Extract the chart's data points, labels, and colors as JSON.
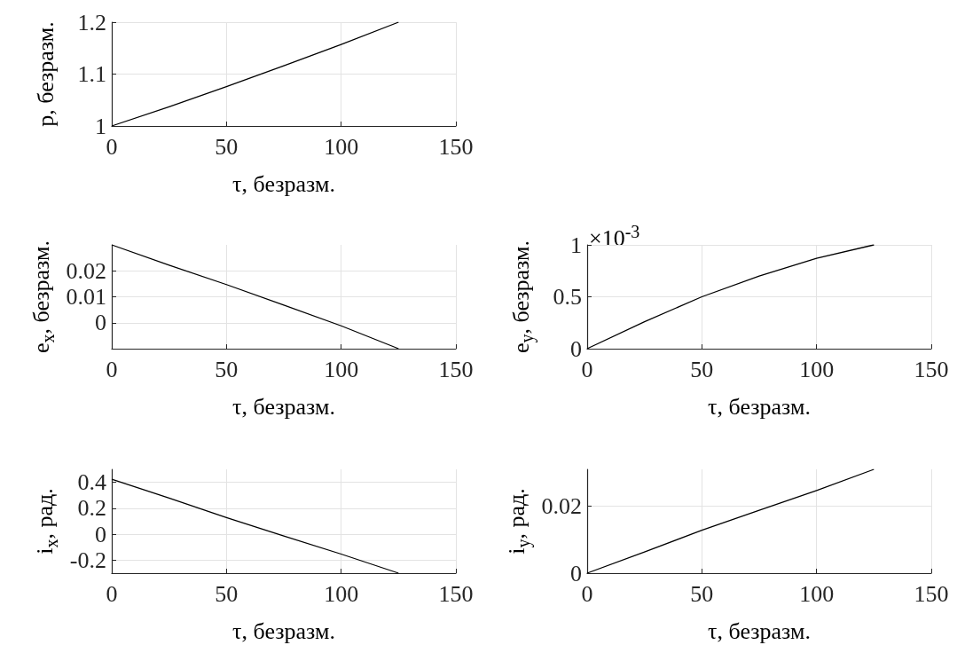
{
  "chart_data": [
    {
      "type": "line",
      "xlabel": "τ, безразм.",
      "ylabel": "p, безразм.",
      "x": [
        0,
        25,
        50,
        75,
        100,
        125
      ],
      "values": [
        1,
        1.037,
        1.076,
        1.116,
        1.157,
        1.2
      ],
      "color": "#000000",
      "xlim": [
        0,
        150
      ],
      "xticks": [
        0,
        50,
        100,
        150
      ],
      "ylim": [
        1,
        1.2
      ],
      "yticks": [
        1,
        1.1,
        1.2
      ],
      "grid": true,
      "marker": "none"
    },
    {
      "type": "line",
      "xlabel": "τ, безразм.",
      "ylabel": "e$_{x}$, безразм.",
      "x": [
        0,
        25,
        50,
        75,
        100,
        125
      ],
      "values": [
        0.03,
        0.0222,
        0.0147,
        0.0068,
        -0.0012,
        -0.01
      ],
      "color": "#000000",
      "xlim": [
        0,
        150
      ],
      "xticks": [
        0,
        50,
        100,
        150
      ],
      "ylim": [
        -0.01,
        0.03
      ],
      "yticks": [
        0,
        0.01,
        0.02
      ],
      "grid": true,
      "marker": "none"
    },
    {
      "type": "line",
      "xlabel": "τ, безразм.",
      "ylabel": "e$_{y}$, безразм.",
      "annotations": [
        "×10$^{-3}$"
      ],
      "x": [
        0,
        25,
        50,
        75,
        100,
        125
      ],
      "values": [
        0,
        0.26,
        0.5,
        0.7,
        0.87,
        1
      ],
      "color": "#000000",
      "xlim": [
        0,
        150
      ],
      "xticks": [
        0,
        50,
        100,
        150
      ],
      "ylim": [
        0,
        1
      ],
      "yticks": [
        0,
        0.5,
        1
      ],
      "grid": true,
      "marker": "none"
    },
    {
      "type": "line",
      "xlabel": "τ, безразм.",
      "ylabel": "i$_{x}$, рад.",
      "x": [
        0,
        25,
        50,
        75,
        100,
        125
      ],
      "values": [
        0.424,
        0.278,
        0.128,
        -0.013,
        -0.153,
        -0.3
      ],
      "color": "#000000",
      "xlim": [
        0,
        150
      ],
      "xticks": [
        0,
        50,
        100,
        150
      ],
      "ylim": [
        -0.3,
        0.5
      ],
      "yticks": [
        -0.2,
        0,
        0.2,
        0.4
      ],
      "grid": true,
      "marker": "none"
    },
    {
      "type": "line",
      "xlabel": "τ, безразм.",
      "ylabel": "i$_{y}$, рад.",
      "x": [
        0,
        25,
        50,
        75,
        100,
        125
      ],
      "values": [
        0,
        0.0063,
        0.0128,
        0.0188,
        0.0247,
        0.031
      ],
      "color": "#000000",
      "xlim": [
        0,
        150
      ],
      "xticks": [
        0,
        50,
        100,
        150
      ],
      "ylim": [
        0,
        0.031
      ],
      "yticks": [
        0,
        0.02
      ],
      "grid": true,
      "marker": "none"
    }
  ]
}
